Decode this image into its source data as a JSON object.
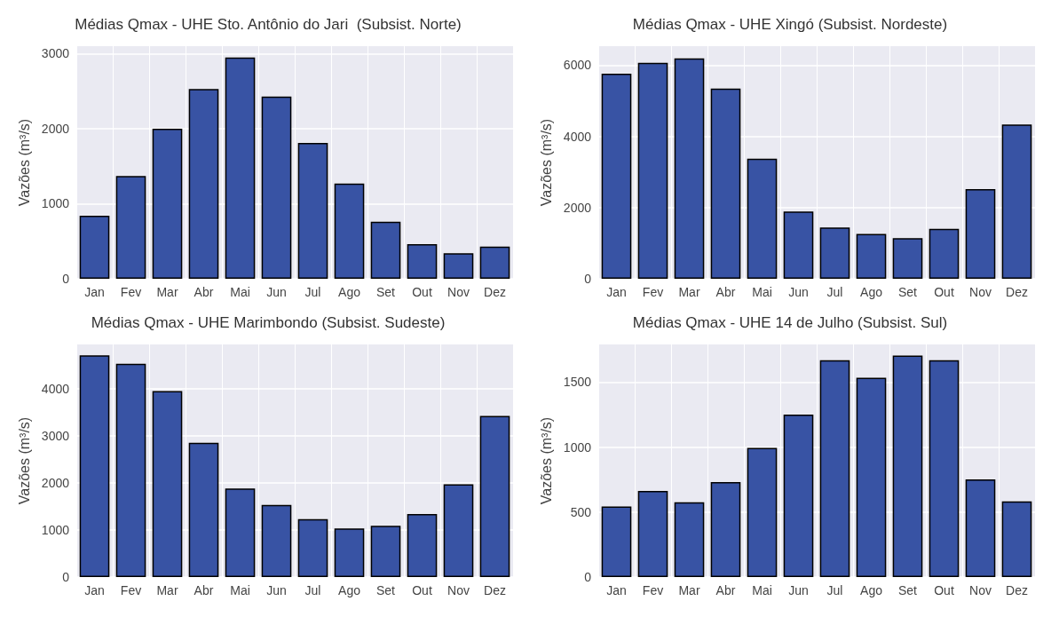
{
  "chart_data": [
    {
      "type": "bar",
      "title": "Médias Qmax - UHE Sto. Antônio do Jari  (Subsist. Norte)",
      "ylabel": "Vazões (m³/s)",
      "categories": [
        "Jan",
        "Fev",
        "Mar",
        "Abr",
        "Mai",
        "Jun",
        "Jul",
        "Ago",
        "Set",
        "Out",
        "Nov",
        "Dez"
      ],
      "values": [
        840,
        1370,
        2000,
        2530,
        2950,
        2430,
        1810,
        1270,
        760,
        460,
        340,
        430
      ],
      "color": "#3853a4",
      "ylim": [
        0,
        3100
      ],
      "yticks": [
        0,
        1000,
        2000,
        3000
      ],
      "grid": true
    },
    {
      "type": "bar",
      "title": "Médias Qmax - UHE Xingó (Subsist. Nordeste)",
      "ylabel": "Vazões (m³/s)",
      "categories": [
        "Jan",
        "Fev",
        "Mar",
        "Abr",
        "Mai",
        "Jun",
        "Jul",
        "Ago",
        "Set",
        "Out",
        "Nov",
        "Dez"
      ],
      "values": [
        5760,
        6060,
        6190,
        5340,
        3370,
        1890,
        1440,
        1260,
        1140,
        1400,
        2520,
        4330
      ],
      "color": "#3853a4",
      "ylim": [
        0,
        6530
      ],
      "yticks": [
        0,
        2000,
        4000,
        6000
      ],
      "grid": true
    },
    {
      "type": "bar",
      "title": "Médias Qmax - UHE Marimbondo (Subsist. Sudeste)",
      "ylabel": "Vazões (m³/s)",
      "categories": [
        "Jan",
        "Fev",
        "Mar",
        "Abr",
        "Mai",
        "Jun",
        "Jul",
        "Ago",
        "Set",
        "Out",
        "Nov",
        "Dez"
      ],
      "values": [
        4710,
        4530,
        3950,
        2850,
        1880,
        1530,
        1230,
        1030,
        1090,
        1340,
        1970,
        3420
      ],
      "color": "#3853a4",
      "ylim": [
        0,
        4940
      ],
      "yticks": [
        0,
        1000,
        2000,
        3000,
        4000
      ],
      "grid": true
    },
    {
      "type": "bar",
      "title": "Médias Qmax - UHE 14 de Julho (Subsist. Sul)",
      "ylabel": "Vazões (m³/s)",
      "categories": [
        "Jan",
        "Fev",
        "Mar",
        "Abr",
        "Mai",
        "Jun",
        "Jul",
        "Ago",
        "Set",
        "Out",
        "Nov",
        "Dez"
      ],
      "values": [
        544,
        662,
        575,
        731,
        994,
        1250,
        1669,
        1533,
        1705,
        1669,
        751,
        583
      ],
      "color": "#3853a4",
      "ylim": [
        0,
        1790
      ],
      "yticks": [
        0,
        500,
        1000,
        1500
      ],
      "grid": true
    }
  ]
}
